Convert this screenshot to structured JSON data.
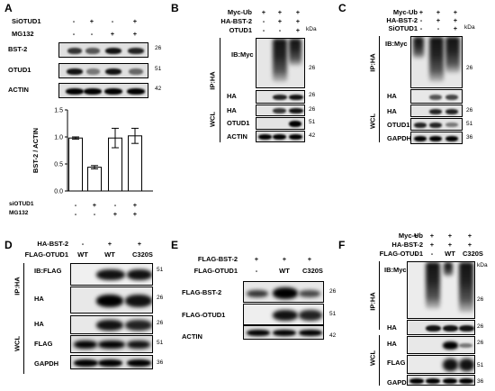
{
  "panels": {
    "A": {
      "letter": "A",
      "rows": [
        "SiOTUD1",
        "MG132"
      ],
      "signs": [
        [
          "-",
          "+",
          "-",
          "+"
        ],
        [
          "-",
          "-",
          "+",
          "+"
        ]
      ],
      "blots": [
        {
          "label": "BST-2",
          "mw": "26"
        },
        {
          "label": "OTUD1",
          "mw": "51"
        },
        {
          "label": "ACTIN",
          "mw": "42"
        }
      ],
      "chart_rows": [
        "siOTUD1",
        "MG132"
      ],
      "chart_signs": [
        [
          "-",
          "+",
          "-",
          "+"
        ],
        [
          "-",
          "-",
          "+",
          "+"
        ]
      ]
    },
    "B": {
      "letter": "B",
      "rows": [
        "Myc-Ub",
        "HA-BST-2",
        "OTUD1"
      ],
      "signs": [
        [
          "+",
          "+",
          "+"
        ],
        [
          "-",
          "+",
          "+"
        ],
        [
          "-",
          "-",
          "+"
        ]
      ],
      "kda": "kDa",
      "ip": "IP:HA",
      "wcl": "WCL",
      "blots": [
        {
          "label": "IB:Myc",
          "mw": "26"
        },
        {
          "label": "HA",
          "mw": "26"
        },
        {
          "label": "HA",
          "mw": "26"
        },
        {
          "label": "OTUD1",
          "mw": "51"
        },
        {
          "label": "ACTIN",
          "mw": "42"
        }
      ]
    },
    "C": {
      "letter": "C",
      "rows": [
        "Myc-Ub",
        "HA-BST-2",
        "SiOTUD1"
      ],
      "signs": [
        [
          "+",
          "+",
          "+"
        ],
        [
          "-",
          "+",
          "+"
        ],
        [
          "-",
          "-",
          "+"
        ]
      ],
      "kda": "kDa",
      "ip": "IP:HA",
      "wcl": "WCL",
      "blots": [
        {
          "label": "IB:Myc",
          "mw": "26"
        },
        {
          "label": "HA",
          "mw": ""
        },
        {
          "label": "HA",
          "mw": "26"
        },
        {
          "label": "OTUD1",
          "mw": "51"
        },
        {
          "label": "GAPDH",
          "mw": "36"
        }
      ]
    },
    "D": {
      "letter": "D",
      "rows": [
        "HA-BST-2",
        "FLAG-OTUD1"
      ],
      "signs": [
        [
          "-",
          "+",
          "+"
        ],
        [
          "WT",
          "WT",
          "C320S"
        ]
      ],
      "ip": "IP:HA",
      "wcl": "WCL",
      "blots": [
        {
          "label": "IB:FLAG",
          "mw": "51"
        },
        {
          "label": "HA",
          "mw": "26"
        },
        {
          "label": "HA",
          "mw": "26"
        },
        {
          "label": "FLAG",
          "mw": "51"
        },
        {
          "label": "GAPDH",
          "mw": "36"
        }
      ]
    },
    "E": {
      "letter": "E",
      "rows": [
        "FLAG-BST-2",
        "FLAG-OTUD1"
      ],
      "signs": [
        [
          "+",
          "+",
          "+"
        ],
        [
          "-",
          "WT",
          "C320S"
        ]
      ],
      "blots": [
        {
          "label": "FLAG-BST-2",
          "mw": "26"
        },
        {
          "label": "FLAG-OTUD1",
          "mw": "51"
        },
        {
          "label": "ACTIN",
          "mw": "42"
        }
      ]
    },
    "F": {
      "letter": "F",
      "rows": [
        "Myc-Ub",
        "HA-BST-2",
        "FLAG-OTUD1"
      ],
      "signs": [
        [
          "+",
          "+",
          "+",
          "+"
        ],
        [
          "-",
          "+",
          "+",
          "+"
        ],
        [
          "-",
          "-",
          "WT",
          "C320S"
        ]
      ],
      "kda": "kDa",
      "ip": "IP:HA",
      "wcl": "WCL",
      "blots": [
        {
          "label": "IB:Myc",
          "mw": "26"
        },
        {
          "label": "HA",
          "mw": "26"
        },
        {
          "label": "HA",
          "mw": "26"
        },
        {
          "label": "FLAG",
          "mw": "51"
        },
        {
          "label": "GAPDH",
          "mw": "36"
        }
      ]
    }
  },
  "chart_data": {
    "type": "bar",
    "categories": [
      "1",
      "2",
      "3",
      "4"
    ],
    "values": [
      0.98,
      0.44,
      0.98,
      1.02
    ],
    "errors": [
      0.02,
      0.03,
      0.18,
      0.14
    ],
    "ylabel": "BST-2 / ACTIN",
    "ylim": [
      0,
      1.5
    ],
    "yticks": [
      "0.0",
      "0.5",
      "1.0",
      "1.5"
    ],
    "colors": {
      "bar_fill": "#ffffff",
      "highlight": "#000000"
    }
  }
}
